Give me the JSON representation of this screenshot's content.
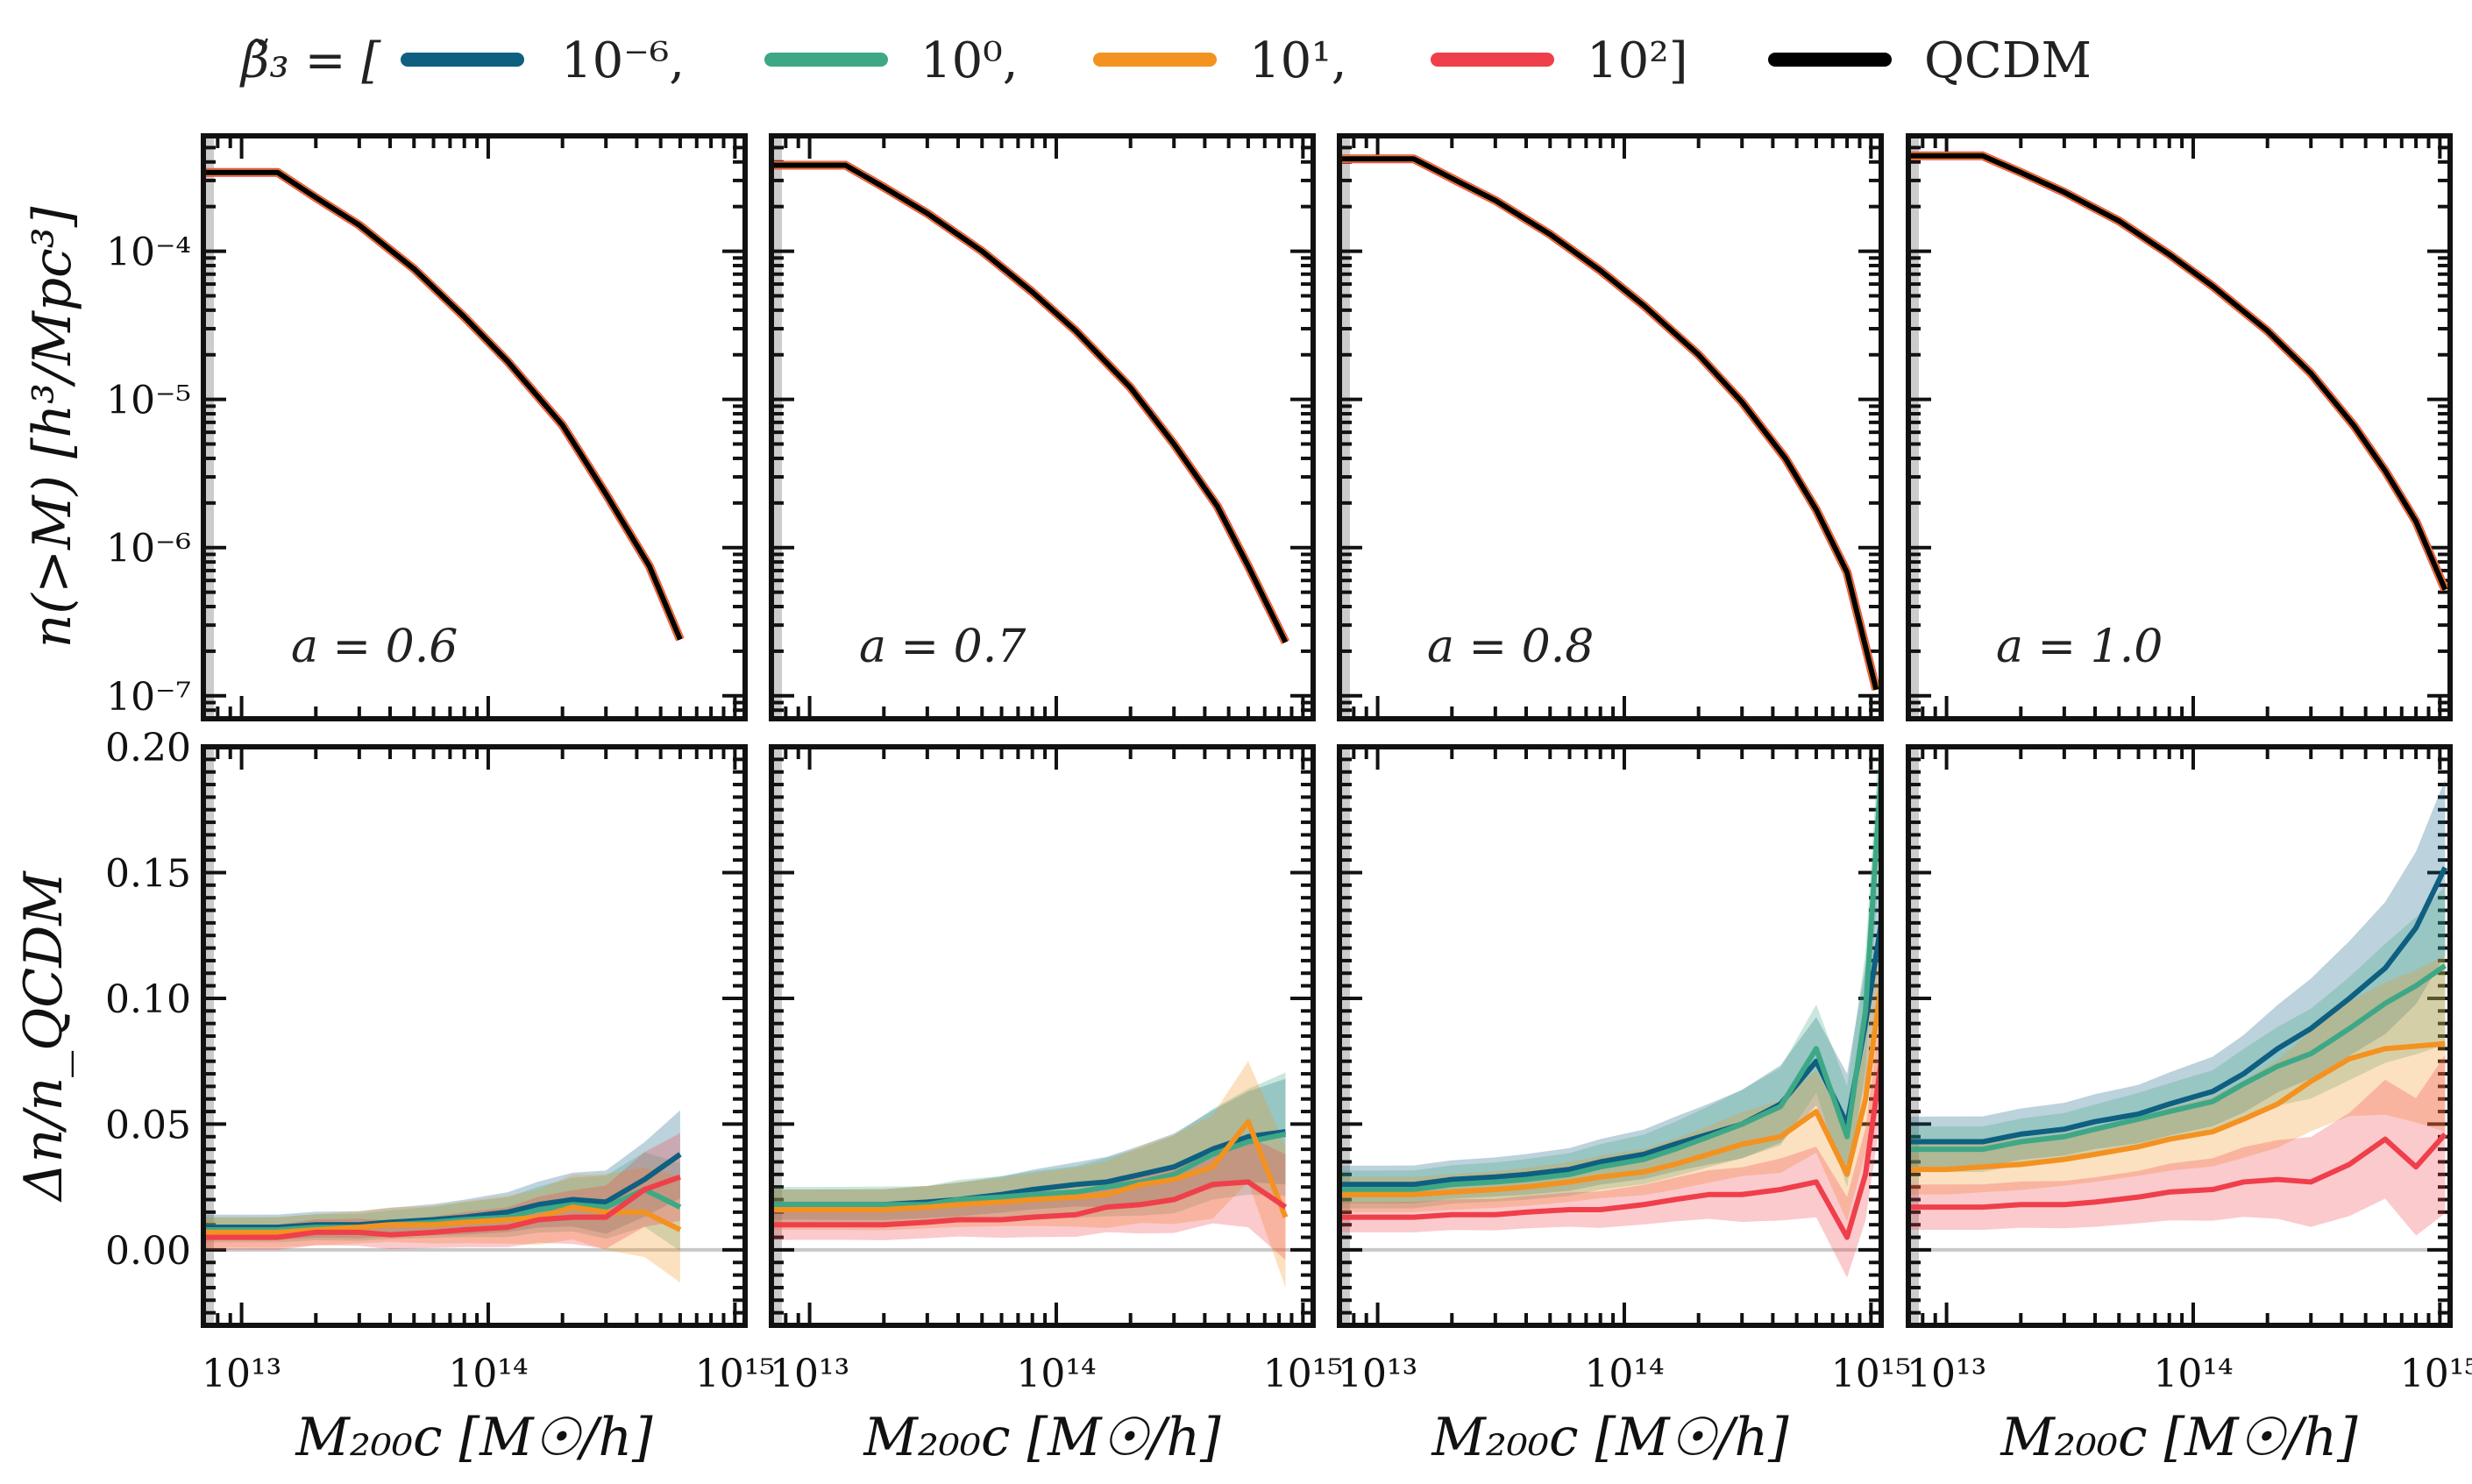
{
  "legend": {
    "title": "β̃₃ = [",
    "closing": "]",
    "entries": [
      {
        "label": "10⁻⁶,",
        "color": "#0e5f80"
      },
      {
        "label": "10⁰,",
        "color": "#3ea886"
      },
      {
        "label": "10¹,",
        "color": "#f39220"
      },
      {
        "label": "10²]",
        "color": "#ef3f4a"
      },
      {
        "label": "QCDM",
        "color": "#000000"
      }
    ]
  },
  "axes_text": {
    "top_ylabel": "n(>M)   [h³/Mpc³]",
    "bottom_ylabel": "Δn/n_QCDM",
    "xlabel": "M₂₀₀c   [M☉/h]",
    "top_yticks": [
      "10⁻⁴",
      "10⁻⁵",
      "10⁻⁶",
      "10⁻⁷"
    ],
    "bottom_yticks": [
      "0.20",
      "0.15",
      "0.10",
      "0.05",
      "0.00"
    ],
    "xticks": [
      "10¹³",
      "10¹⁴",
      "10¹⁵"
    ]
  },
  "chart_data": [
    {
      "type": "line",
      "panel": "a = 0.6",
      "title": "a = 0.6",
      "xscale": "log",
      "yscale": "log",
      "xlim": [
        7000000000000.0,
        1100000000000000.0
      ],
      "ylim": [
        7e-08,
        0.0006
      ],
      "series": [
        {
          "name": "QCDM",
          "x": [
            7000000000000.0,
            14000000000000.0,
            20000000000000.0,
            30000000000000.0,
            50000000000000.0,
            80000000000000.0,
            120000000000000.0,
            200000000000000.0,
            300000000000000.0,
            450000000000000.0,
            600000000000000.0
          ],
          "values": [
            0.00034,
            0.00034,
            0.00023,
            0.00015,
            7.6e-05,
            3.6e-05,
            1.8e-05,
            6.7e-06,
            2.3e-06,
            7.5e-07,
            2.4e-07
          ]
        }
      ]
    },
    {
      "type": "line",
      "panel": "a = 0.7",
      "title": "a = 0.7",
      "xscale": "log",
      "yscale": "log",
      "xlim": [
        7000000000000.0,
        1100000000000000.0
      ],
      "ylim": [
        7e-08,
        0.0006
      ],
      "series": [
        {
          "name": "QCDM",
          "x": [
            7000000000000.0,
            14000000000000.0,
            20000000000000.0,
            30000000000000.0,
            50000000000000.0,
            80000000000000.0,
            120000000000000.0,
            200000000000000.0,
            300000000000000.0,
            450000000000000.0,
            600000000000000.0,
            850000000000000.0
          ],
          "values": [
            0.00038,
            0.00038,
            0.00027,
            0.00018,
            0.0001,
            5.3e-05,
            2.9e-05,
            1.2e-05,
            5e-06,
            1.9e-06,
            7.5e-07,
            2.3e-07
          ]
        }
      ]
    },
    {
      "type": "line",
      "panel": "a = 0.8",
      "title": "a = 0.8",
      "xscale": "log",
      "yscale": "log",
      "xlim": [
        7000000000000.0,
        1100000000000000.0
      ],
      "ylim": [
        7e-08,
        0.0006
      ],
      "series": [
        {
          "name": "QCDM",
          "x": [
            7000000000000.0,
            14000000000000.0,
            20000000000000.0,
            30000000000000.0,
            50000000000000.0,
            80000000000000.0,
            120000000000000.0,
            200000000000000.0,
            300000000000000.0,
            450000000000000.0,
            600000000000000.0,
            800000000000000.0,
            1050000000000000.0
          ],
          "values": [
            0.00042,
            0.00042,
            0.00031,
            0.00022,
            0.00013,
            7.4e-05,
            4.3e-05,
            2e-05,
            9.6e-06,
            4e-06,
            1.8e-06,
            6.8e-07,
            1.1e-07
          ]
        }
      ]
    },
    {
      "type": "line",
      "panel": "a = 1.0",
      "title": "a = 1.0",
      "xscale": "log",
      "yscale": "log",
      "xlim": [
        7000000000000.0,
        1100000000000000.0
      ],
      "ylim": [
        7e-08,
        0.0006
      ],
      "series": [
        {
          "name": "QCDM",
          "x": [
            7000000000000.0,
            14000000000000.0,
            20000000000000.0,
            30000000000000.0,
            50000000000000.0,
            80000000000000.0,
            120000000000000.0,
            200000000000000.0,
            300000000000000.0,
            450000000000000.0,
            600000000000000.0,
            800000000000000.0,
            1050000000000000.0
          ],
          "values": [
            0.00044,
            0.00044,
            0.00034,
            0.00025,
            0.00016,
            9.5e-05,
            5.8e-05,
            2.9e-05,
            1.5e-05,
            6.6e-06,
            3.3e-06,
            1.5e-06,
            5.2e-07
          ]
        }
      ]
    },
    {
      "type": "line",
      "panel": "residual a = 0.6",
      "xscale": "log",
      "xlim": [
        7000000000000.0,
        1100000000000000.0
      ],
      "ylim": [
        -0.03,
        0.2
      ],
      "x": [
        7000000000000.0,
        10000000000000.0,
        14000000000000.0,
        20000000000000.0,
        30000000000000.0,
        40000000000000.0,
        60000000000000.0,
        80000000000000.0,
        120000000000000.0,
        160000000000000.0,
        220000000000000.0,
        300000000000000.0,
        430000000000000.0,
        600000000000000.0
      ],
      "series": [
        {
          "name": "10⁻⁶",
          "values": [
            0.009,
            0.009,
            0.009,
            0.01,
            0.01,
            0.011,
            0.012,
            0.013,
            0.015,
            0.018,
            0.02,
            0.019,
            0.028,
            0.038
          ],
          "band": 0.01
        },
        {
          "name": "10⁰",
          "values": [
            0.008,
            0.008,
            0.008,
            0.009,
            0.009,
            0.01,
            0.011,
            0.012,
            0.013,
            0.016,
            0.018,
            0.017,
            0.024,
            0.017
          ],
          "band": 0.01
        },
        {
          "name": "10¹",
          "values": [
            0.007,
            0.007,
            0.007,
            0.008,
            0.009,
            0.01,
            0.01,
            0.011,
            0.012,
            0.013,
            0.017,
            0.015,
            0.015,
            0.008
          ],
          "band": 0.012
        },
        {
          "name": "10²",
          "values": [
            0.005,
            0.005,
            0.005,
            0.007,
            0.007,
            0.006,
            0.007,
            0.008,
            0.009,
            0.012,
            0.013,
            0.013,
            0.024,
            0.029
          ],
          "band": 0.01
        }
      ]
    },
    {
      "type": "line",
      "panel": "residual a = 0.7",
      "xscale": "log",
      "xlim": [
        7000000000000.0,
        1100000000000000.0
      ],
      "ylim": [
        -0.03,
        0.2
      ],
      "x": [
        7000000000000.0,
        10000000000000.0,
        14000000000000.0,
        20000000000000.0,
        30000000000000.0,
        40000000000000.0,
        60000000000000.0,
        80000000000000.0,
        120000000000000.0,
        160000000000000.0,
        220000000000000.0,
        300000000000000.0,
        430000000000000.0,
        600000000000000.0,
        850000000000000.0
      ],
      "series": [
        {
          "name": "10⁻⁶",
          "values": [
            0.018,
            0.018,
            0.018,
            0.018,
            0.019,
            0.02,
            0.022,
            0.024,
            0.026,
            0.027,
            0.03,
            0.033,
            0.04,
            0.045,
            0.047
          ],
          "band": 0.012
        },
        {
          "name": "10⁰",
          "values": [
            0.018,
            0.018,
            0.018,
            0.018,
            0.018,
            0.02,
            0.021,
            0.022,
            0.023,
            0.025,
            0.027,
            0.03,
            0.038,
            0.043,
            0.046
          ],
          "band": 0.014
        },
        {
          "name": "10¹",
          "values": [
            0.016,
            0.016,
            0.016,
            0.016,
            0.017,
            0.018,
            0.019,
            0.02,
            0.021,
            0.022,
            0.026,
            0.028,
            0.033,
            0.051,
            0.013
          ],
          "band": 0.016
        },
        {
          "name": "10²",
          "values": [
            0.01,
            0.01,
            0.01,
            0.01,
            0.011,
            0.012,
            0.012,
            0.013,
            0.014,
            0.017,
            0.018,
            0.02,
            0.026,
            0.027,
            0.017
          ],
          "band": 0.012
        }
      ]
    },
    {
      "type": "line",
      "panel": "residual a = 0.8",
      "xscale": "log",
      "xlim": [
        7000000000000.0,
        1100000000000000.0
      ],
      "ylim": [
        -0.03,
        0.2
      ],
      "x": [
        7000000000000.0,
        10000000000000.0,
        14000000000000.0,
        20000000000000.0,
        30000000000000.0,
        40000000000000.0,
        60000000000000.0,
        80000000000000.0,
        120000000000000.0,
        160000000000000.0,
        220000000000000.0,
        300000000000000.0,
        430000000000000.0,
        600000000000000.0,
        800000000000000.0,
        950000000000000.0,
        1100000000000000.0
      ],
      "series": [
        {
          "name": "10⁻⁶",
          "values": [
            0.026,
            0.026,
            0.026,
            0.028,
            0.029,
            0.03,
            0.032,
            0.035,
            0.038,
            0.042,
            0.046,
            0.05,
            0.058,
            0.075,
            0.05,
            0.09,
            0.13
          ],
          "band": 0.015
        },
        {
          "name": "10⁰",
          "values": [
            0.024,
            0.024,
            0.024,
            0.026,
            0.027,
            0.028,
            0.03,
            0.033,
            0.036,
            0.04,
            0.045,
            0.05,
            0.057,
            0.08,
            0.045,
            0.095,
            0.19
          ],
          "band": 0.015
        },
        {
          "name": "10¹",
          "values": [
            0.022,
            0.022,
            0.022,
            0.023,
            0.024,
            0.025,
            0.027,
            0.029,
            0.031,
            0.034,
            0.038,
            0.042,
            0.045,
            0.055,
            0.03,
            0.06,
            0.105
          ],
          "band": 0.014
        },
        {
          "name": "10²",
          "values": [
            0.013,
            0.013,
            0.013,
            0.014,
            0.014,
            0.015,
            0.016,
            0.016,
            0.018,
            0.02,
            0.022,
            0.022,
            0.024,
            0.027,
            0.005,
            0.03,
            0.075
          ],
          "band": 0.012
        }
      ]
    },
    {
      "type": "line",
      "panel": "residual a = 1.0",
      "xscale": "log",
      "xlim": [
        7000000000000.0,
        1100000000000000.0
      ],
      "ylim": [
        -0.03,
        0.2
      ],
      "x": [
        7000000000000.0,
        10000000000000.0,
        14000000000000.0,
        20000000000000.0,
        30000000000000.0,
        40000000000000.0,
        60000000000000.0,
        80000000000000.0,
        120000000000000.0,
        160000000000000.0,
        220000000000000.0,
        300000000000000.0,
        430000000000000.0,
        600000000000000.0,
        800000000000000.0,
        1050000000000000.0
      ],
      "series": [
        {
          "name": "10⁻⁶",
          "values": [
            0.043,
            0.043,
            0.043,
            0.046,
            0.048,
            0.051,
            0.054,
            0.058,
            0.063,
            0.07,
            0.08,
            0.088,
            0.1,
            0.112,
            0.128,
            0.152
          ],
          "band": 0.02
        },
        {
          "name": "10⁰",
          "values": [
            0.04,
            0.04,
            0.04,
            0.043,
            0.045,
            0.048,
            0.052,
            0.055,
            0.059,
            0.066,
            0.073,
            0.078,
            0.088,
            0.098,
            0.105,
            0.113
          ],
          "band": 0.018
        },
        {
          "name": "10¹",
          "values": [
            0.032,
            0.032,
            0.033,
            0.034,
            0.036,
            0.038,
            0.041,
            0.044,
            0.047,
            0.052,
            0.058,
            0.067,
            0.076,
            0.08,
            0.081,
            0.082
          ],
          "band": 0.02
        },
        {
          "name": "10²",
          "values": [
            0.017,
            0.017,
            0.017,
            0.018,
            0.018,
            0.019,
            0.021,
            0.023,
            0.024,
            0.027,
            0.028,
            0.027,
            0.034,
            0.044,
            0.033,
            0.046
          ],
          "band": 0.018
        }
      ]
    }
  ]
}
